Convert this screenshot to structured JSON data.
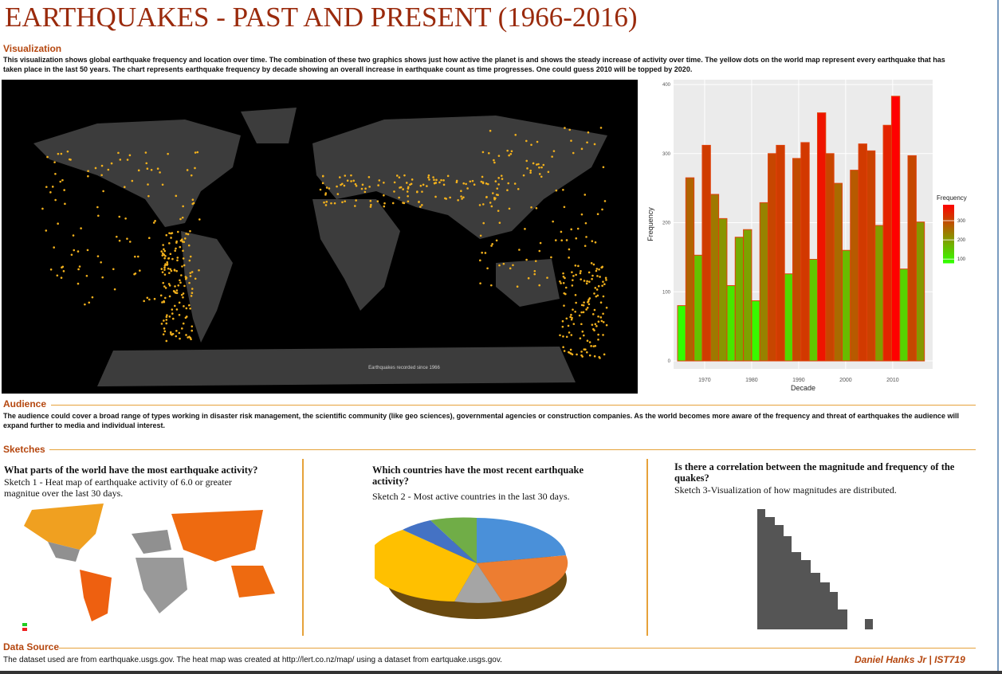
{
  "header": {
    "title": "EARTHQUAKES - PAST AND PRESENT (1966-2016)"
  },
  "visualization": {
    "heading": "Visualization",
    "text": "This visualization shows global earthquake frequency and location over time.  The combination of these two graphics shows just how active the planet is and shows the steady increase of activity over time.  The yellow dots on the world map represent every earthquake that has taken place in the last 50 years.  The chart represents earthquake frequency by decade showing an overall increase in earthquake count as time progresses.  One could guess 2010 will be topped by 2020."
  },
  "map": {
    "caption": "Earthquakes recorded since 1966"
  },
  "chart_data": {
    "type": "histogram",
    "x_label": "Decade",
    "y_label": "Frequency",
    "bins": [
      1964.25,
      1966,
      1967.75,
      1969.5,
      1971.25,
      1973,
      1974.75,
      1976.5,
      1978.25,
      1980,
      1981.75,
      1983.5,
      1985.25,
      1987,
      1988.75,
      1990.5,
      1992.25,
      1994,
      1995.75,
      1997.5,
      1999.25,
      2001,
      2002.75,
      2004.5,
      2006.25,
      2008,
      2009.75,
      2011.5,
      2013.25,
      2015,
      2016.75
    ],
    "values": [
      80,
      265,
      153,
      312,
      241,
      206,
      109,
      179,
      190,
      87,
      229,
      300,
      312,
      126,
      293,
      316,
      147,
      359,
      300,
      257,
      160,
      276,
      314,
      304,
      196,
      341,
      383,
      133,
      297,
      201
    ],
    "xlim": [
      1963.4,
      2018.5
    ],
    "xticks": [
      1970,
      1980,
      1990,
      2000,
      2010
    ],
    "ylim": [
      -11.5,
      407
    ],
    "yticks": [
      0,
      100,
      200,
      300,
      400
    ],
    "grid": true,
    "colors": [
      "#33ff00",
      "#ff0000"
    ],
    "border_color": "#e0400a",
    "legend": {
      "title": "Frequency",
      "lim": [
        80,
        383
      ],
      "ticks": [
        100,
        200,
        300
      ]
    }
  },
  "audience": {
    "heading": "Audience",
    "text": "The audience could cover a broad range of types working in disaster risk management, the scientific community (like geo sciences), governmental agencies or construction companies.  As the world becomes more aware of the frequency and threat of earthquakes the audience will expand further to media and individual interest."
  },
  "sketches": {
    "heading": "Sketches",
    "items": [
      {
        "question": "What parts of the world have the most earthquake activity?",
        "caption": "Sketch 1 - Heat map of earthquake activity of 6.0 or greater magnitue over the last 30 days."
      },
      {
        "question": "Which countries have the most recent earthquake activity?",
        "caption": "Sketch 2 - Most active countries in the last 30 days."
      },
      {
        "question": "Is there a correlation between the magnitude and frequency of the quakes?",
        "caption": "Sketch 3-Visualization of how magnitudes are distributed."
      }
    ]
  },
  "data_source": {
    "heading": "Data Source",
    "text": "The dataset used are from earthquake.usgs.gov.  The heat map was created at http://lert.co.nz/map/ using a dataset from eartquake.usgs.gov."
  },
  "author": "Daniel Hanks Jr | IST719"
}
